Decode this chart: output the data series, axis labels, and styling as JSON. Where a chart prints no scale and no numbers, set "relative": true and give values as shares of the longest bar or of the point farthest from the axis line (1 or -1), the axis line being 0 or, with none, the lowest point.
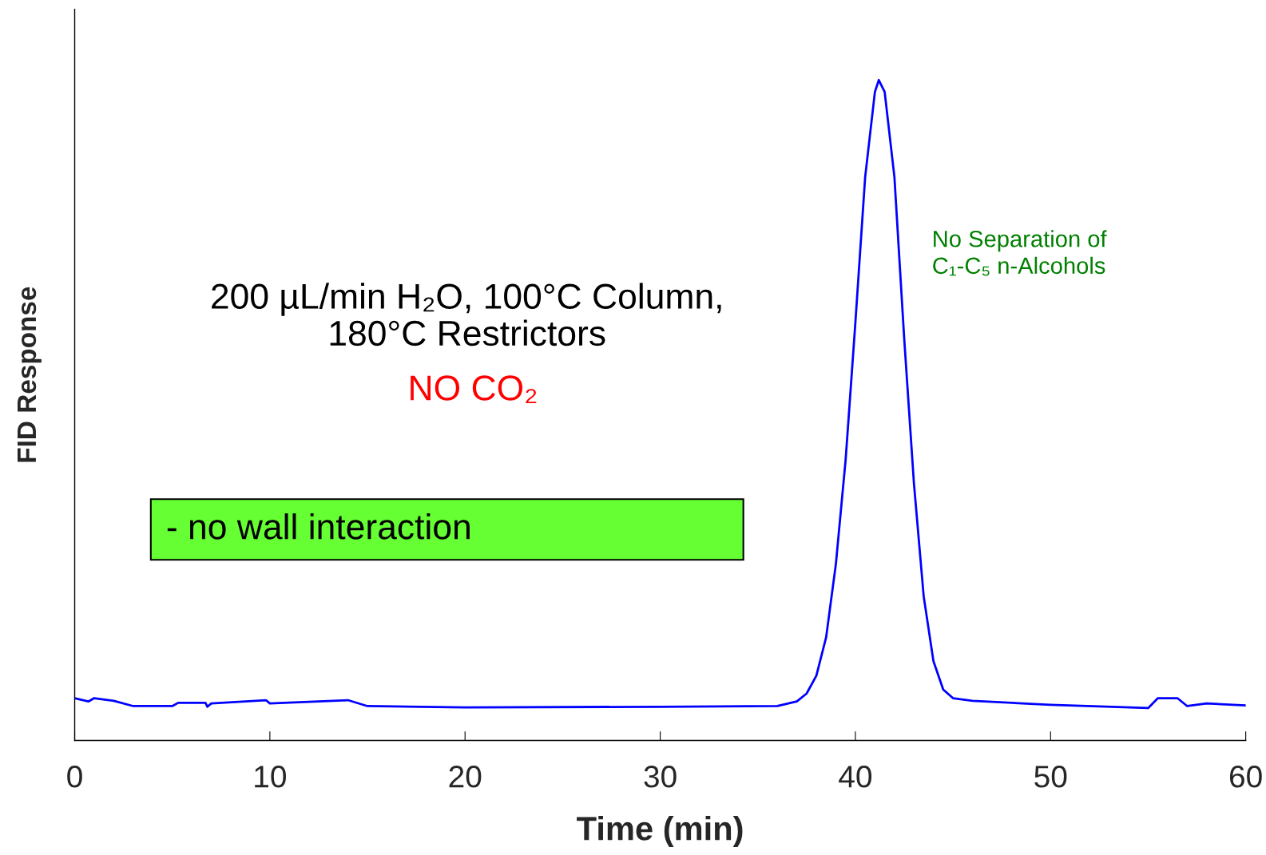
{
  "chart_data": {
    "type": "line",
    "relative": true,
    "xlabel": "Time (min)",
    "ylabel": "FID Response",
    "xlim": [
      0,
      60
    ],
    "xticks": [
      0,
      10,
      20,
      30,
      40,
      50,
      60
    ],
    "grid": false,
    "legend": false,
    "marker": "none",
    "line_style": "solid",
    "annotations": [
      "200 µL/min H₂O, 100°C Column,\n180°C Restrictors",
      "NO CO₂",
      "- no wall interaction",
      "No Separation of\nC₁-C₅ n-Alcohols"
    ],
    "series": [
      {
        "color": "#0000ff",
        "x": [
          0,
          0.7,
          1.0,
          2.0,
          3,
          5,
          5.3,
          6.7,
          6.8,
          7,
          9.8,
          10,
          14,
          15,
          20,
          30,
          36,
          37,
          37.5,
          38,
          38.5,
          39,
          39.5,
          40,
          40.5,
          41,
          41.2,
          41.5,
          42,
          42.5,
          43,
          43.5,
          44,
          44.5,
          45,
          46,
          50,
          55,
          55.5,
          56.5,
          57,
          58,
          60
        ],
        "values": [
          0.064,
          0.059,
          0.064,
          0.06,
          0.052,
          0.052,
          0.057,
          0.057,
          0.051,
          0.056,
          0.061,
          0.056,
          0.061,
          0.052,
          0.05,
          0.051,
          0.052,
          0.059,
          0.071,
          0.098,
          0.156,
          0.267,
          0.425,
          0.633,
          0.853,
          0.982,
          1.0,
          0.982,
          0.853,
          0.609,
          0.389,
          0.218,
          0.12,
          0.077,
          0.064,
          0.06,
          0.054,
          0.049,
          0.064,
          0.064,
          0.052,
          0.056,
          0.053
        ]
      }
    ]
  }
}
